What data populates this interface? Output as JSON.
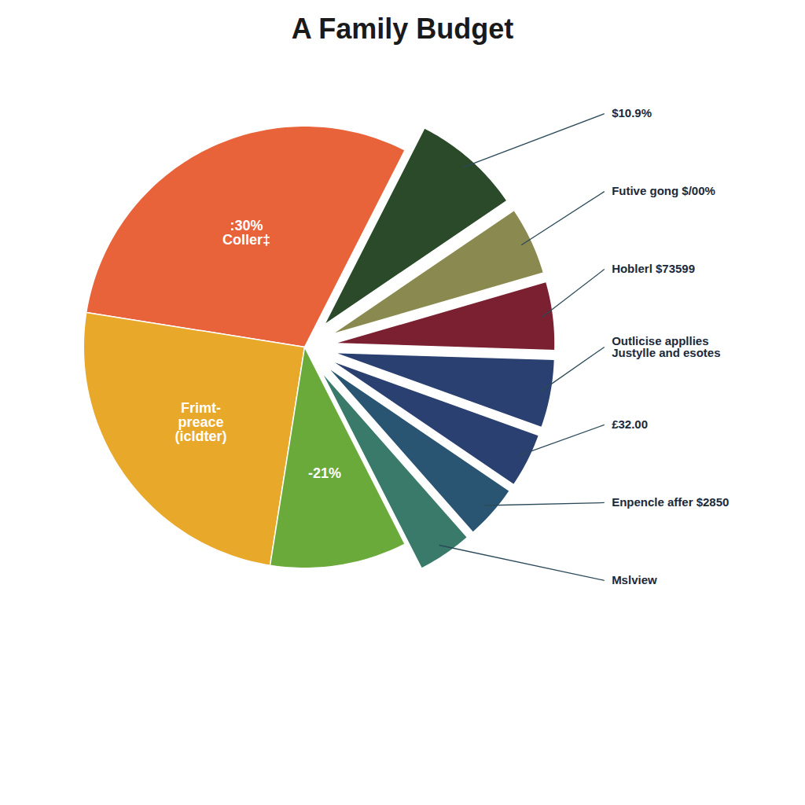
{
  "chart_data": {
    "type": "pie",
    "title": "A Family Budget",
    "categories": [
      "Coller‡",
      "Frimt-\npreace\n(icldter)",
      "-21%",
      "Mslview",
      "Enpencle affer $2850",
      "£32.00",
      "Outlicise appllies\nJustylle and esotes",
      "Hoblerl $73599",
      "Futive gong $/00%",
      "$10.9%"
    ],
    "values": [
      30,
      25,
      10,
      4,
      4,
      4,
      5,
      5,
      5,
      8
    ],
    "colors": [
      "#e8623a",
      "#e8a82a",
      "#6aaa3a",
      "#3a7a6a",
      "#2a5572",
      "#2a4070",
      "#2a4070",
      "#7a2030",
      "#8a8a50",
      "#2a4a2a"
    ],
    "value_labels": [
      ":30%",
      null,
      null,
      null,
      null,
      null,
      null,
      null,
      null,
      null
    ]
  }
}
